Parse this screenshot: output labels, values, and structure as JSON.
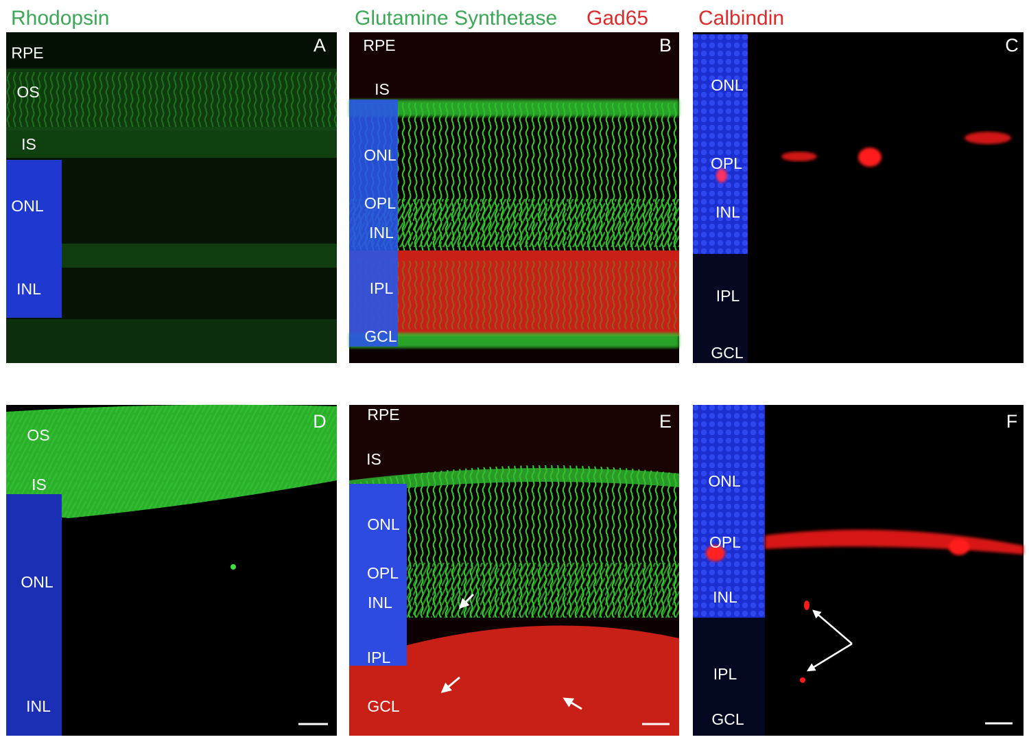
{
  "headers": [
    "Rhodopsin",
    "Glutamine Synthetase",
    "Gad65",
    "Calbindin"
  ],
  "panels": [
    {
      "letter": "A",
      "labels": [
        "RPE",
        "OS",
        "IS",
        "ONL",
        "INL"
      ]
    },
    {
      "letter": "B",
      "labels": [
        "RPE",
        "IS",
        "ONL",
        "OPL",
        "INL",
        "IPL",
        "GCL"
      ]
    },
    {
      "letter": "C",
      "labels": [
        "ONL",
        "OPL",
        "INL",
        "IPL",
        "GCL"
      ]
    },
    {
      "letter": "D",
      "labels": [
        "OS",
        "IS",
        "ONL",
        "INL"
      ]
    },
    {
      "letter": "E",
      "labels": [
        "RPE",
        "IS",
        "ONL",
        "OPL",
        "INL",
        "IPL",
        "GCL"
      ]
    },
    {
      "letter": "F",
      "labels": [
        "ONL",
        "OPL",
        "INL",
        "IPL",
        "GCL"
      ]
    }
  ]
}
